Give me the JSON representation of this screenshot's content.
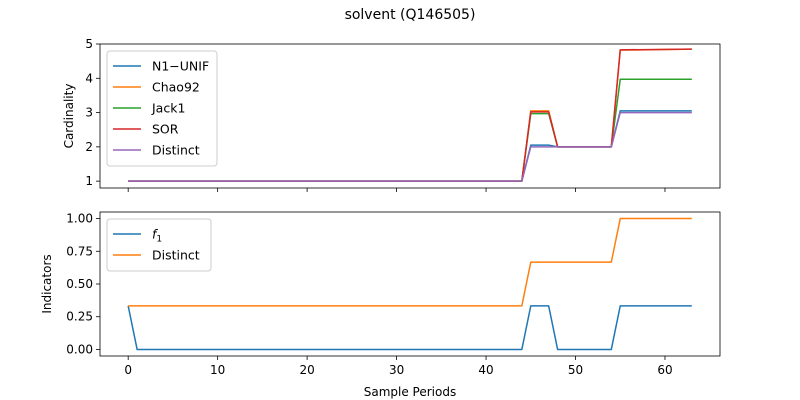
{
  "figure": {
    "title": "solvent (Q146505)",
    "xlabel": "Sample Periods"
  },
  "chart_data": [
    {
      "type": "line",
      "ylabel": "Cardinality",
      "xlim": [
        -3.15,
        66.15
      ],
      "ylim": [
        0.8,
        5.0
      ],
      "xticks": [
        0,
        10,
        20,
        30,
        40,
        50,
        60
      ],
      "yticks": [
        1,
        2,
        3,
        4,
        5
      ],
      "ytick_labels": [
        "1",
        "2",
        "3",
        "4",
        "5"
      ],
      "grid": false,
      "legend_position": "upper-left",
      "series": [
        {
          "name": "N1−UNIF",
          "color": "#1f77b4",
          "points": [
            [
              0,
              1
            ],
            [
              44,
              1
            ],
            [
              45,
              2.05
            ],
            [
              47,
              2.05
            ],
            [
              48,
              2
            ],
            [
              54,
              2
            ],
            [
              55,
              3.05
            ],
            [
              63,
              3.05
            ]
          ]
        },
        {
          "name": "Chao92",
          "color": "#ff7f0e",
          "points": [
            [
              0,
              1
            ],
            [
              44,
              1
            ],
            [
              45,
              3.05
            ],
            [
              47,
              3.05
            ],
            [
              48,
              2
            ],
            [
              54,
              2
            ],
            [
              55,
              4.82
            ],
            [
              63,
              4.85
            ]
          ]
        },
        {
          "name": "Jack1",
          "color": "#2ca02c",
          "points": [
            [
              0,
              1
            ],
            [
              44,
              1
            ],
            [
              45,
              2.97
            ],
            [
              47,
              2.97
            ],
            [
              48,
              2
            ],
            [
              54,
              2
            ],
            [
              55,
              3.97
            ],
            [
              63,
              3.97
            ]
          ]
        },
        {
          "name": "SOR",
          "color": "#d62728",
          "points": [
            [
              0,
              1
            ],
            [
              44,
              1
            ],
            [
              45,
              3.02
            ],
            [
              47,
              3.02
            ],
            [
              48,
              2
            ],
            [
              54,
              2
            ],
            [
              55,
              4.83
            ],
            [
              63,
              4.85
            ]
          ]
        },
        {
          "name": "Distinct",
          "color": "#9467bd",
          "points": [
            [
              0,
              1
            ],
            [
              44,
              1
            ],
            [
              45,
              2
            ],
            [
              47,
              2
            ],
            [
              48,
              2
            ],
            [
              54,
              2
            ],
            [
              55,
              3
            ],
            [
              63,
              3
            ]
          ]
        }
      ]
    },
    {
      "type": "line",
      "ylabel": "Indicators",
      "xlim": [
        -3.15,
        66.15
      ],
      "ylim": [
        -0.05,
        1.05
      ],
      "xticks": [
        0,
        10,
        20,
        30,
        40,
        50,
        60
      ],
      "xtick_labels": [
        "0",
        "10",
        "20",
        "30",
        "40",
        "50",
        "60"
      ],
      "yticks": [
        0,
        0.25,
        0.5,
        0.75,
        1.0
      ],
      "ytick_labels": [
        "0.00",
        "0.25",
        "0.50",
        "0.75",
        "1.00"
      ],
      "grid": false,
      "legend_position": "upper-left",
      "series": [
        {
          "name": "f",
          "name_subscript": "1",
          "color": "#1f77b4",
          "points": [
            [
              0,
              0.333
            ],
            [
              1,
              0
            ],
            [
              44,
              0
            ],
            [
              45,
              0.333
            ],
            [
              47,
              0.333
            ],
            [
              48,
              0
            ],
            [
              54,
              0
            ],
            [
              55,
              0.333
            ],
            [
              63,
              0.333
            ]
          ]
        },
        {
          "name": "Distinct",
          "color": "#ff7f0e",
          "points": [
            [
              0,
              0.333
            ],
            [
              44,
              0.333
            ],
            [
              45,
              0.667
            ],
            [
              54,
              0.667
            ],
            [
              55,
              1.0
            ],
            [
              63,
              1.0
            ]
          ]
        }
      ]
    }
  ]
}
